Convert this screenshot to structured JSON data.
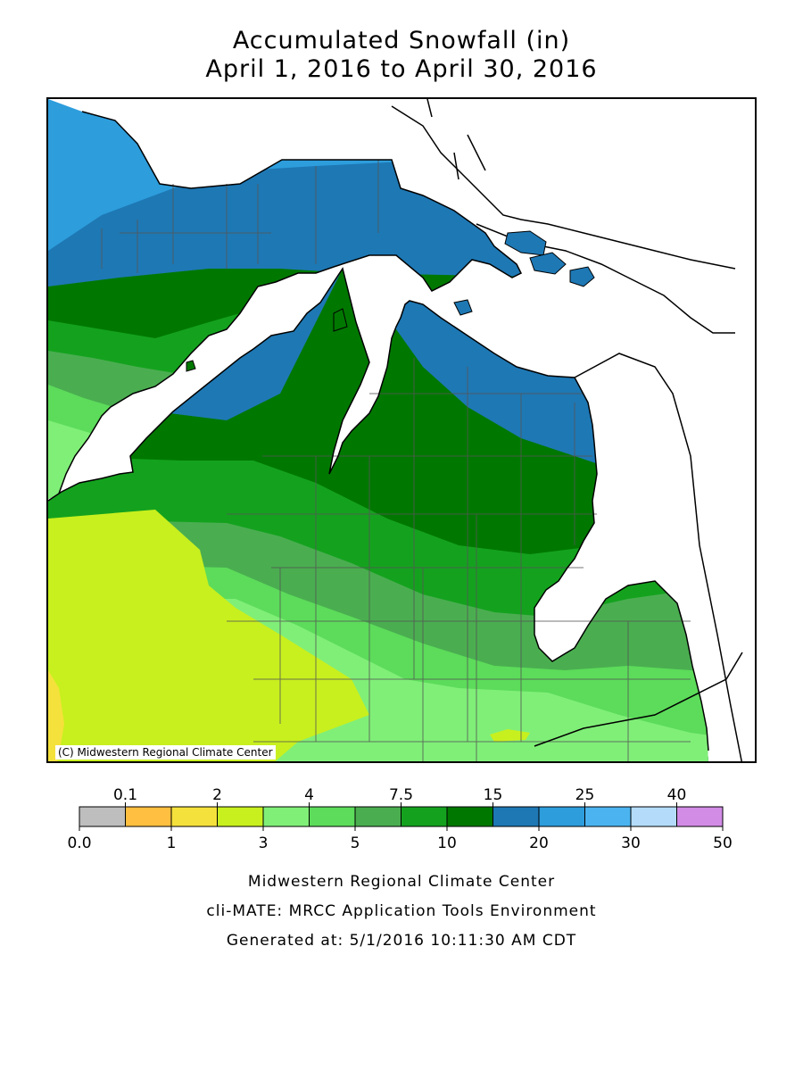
{
  "title": {
    "line1": "Accumulated Snowfall (in)",
    "line2": "April 1, 2016 to April 30, 2016"
  },
  "map": {
    "copyright": "(C) Midwestern Regional Climate Center",
    "land_outline_color": "#000000",
    "county_line_color": "#555555"
  },
  "legend": {
    "top_labels": [
      "0.1",
      "2",
      "4",
      "7.5",
      "15",
      "25",
      "40"
    ],
    "bottom_labels": [
      "0.0",
      "1",
      "3",
      "5",
      "10",
      "20",
      "30",
      "50"
    ],
    "colors": [
      "#bebebe",
      "#ffbf40",
      "#f5e13c",
      "#c8f01e",
      "#80ef78",
      "#5cdc5a",
      "#4aae50",
      "#14a21e",
      "#007800",
      "#1e78b4",
      "#2d9ddc",
      "#4bb4f0",
      "#b4dcfa",
      "#d28ce6"
    ]
  },
  "footer": {
    "line1": "Midwestern Regional Climate Center",
    "line2": "cli-MATE: MRCC Application Tools Environment",
    "line3": "Generated at: 5/1/2016 10:11:30 AM CDT"
  }
}
